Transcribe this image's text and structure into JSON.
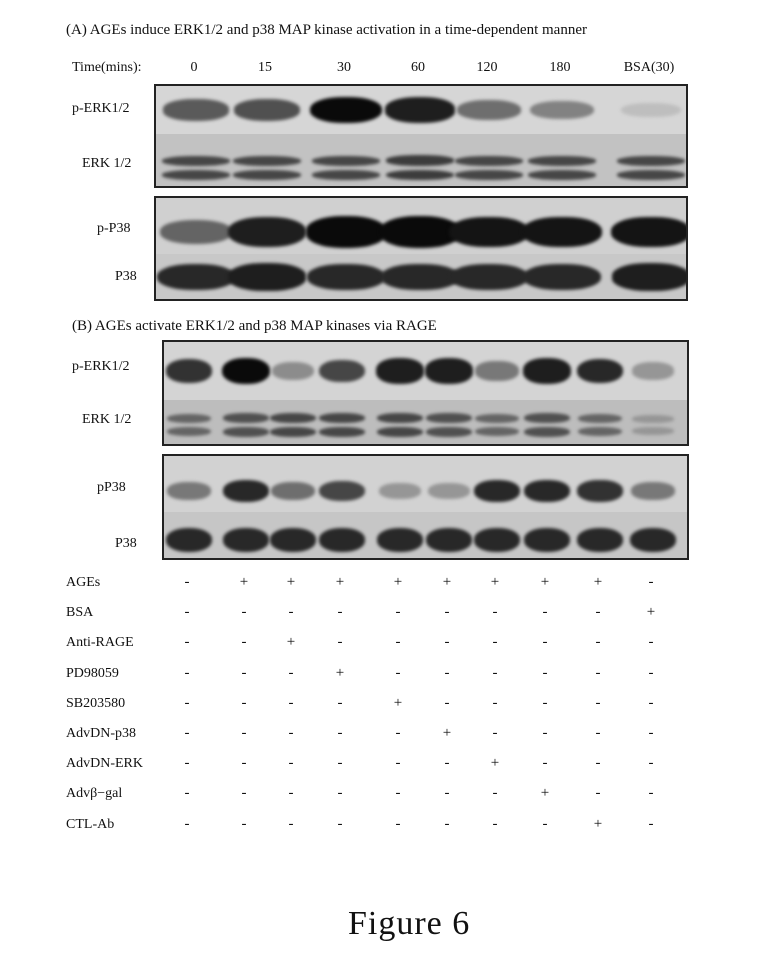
{
  "panelA": {
    "title": "(A) AGEs induce ERK1/2 and p38 MAP kinase activation in a time-dependent manner",
    "time_label": "Time(mins):",
    "timepoints": [
      "0",
      "15",
      "30",
      "60",
      "120",
      "180",
      "BSA(30)"
    ],
    "rows": [
      "p-ERK1/2",
      "ERK 1/2",
      "p-P38",
      "P38"
    ],
    "band_intensity": {
      "p-ERK1/2": [
        0.6,
        0.65,
        1.0,
        0.9,
        0.5,
        0.4,
        0.1
      ],
      "ERK 1/2": [
        0.7,
        0.7,
        0.7,
        0.75,
        0.7,
        0.7,
        0.7
      ],
      "p-P38": [
        0.55,
        0.9,
        1.0,
        1.0,
        0.95,
        0.95,
        0.95
      ],
      "P38": [
        0.85,
        0.9,
        0.85,
        0.85,
        0.85,
        0.85,
        0.9
      ]
    }
  },
  "panelB": {
    "title": "(B) AGEs activate ERK1/2 and p38 MAP kinases via RAGE",
    "rows": [
      "p-ERK1/2",
      "ERK 1/2",
      "pP38",
      "P38"
    ],
    "band_intensity": {
      "p-ERK1/2": [
        0.8,
        1.0,
        0.35,
        0.7,
        0.9,
        0.9,
        0.45,
        0.9,
        0.85,
        0.3
      ],
      "ERK 1/2": [
        0.55,
        0.65,
        0.7,
        0.7,
        0.7,
        0.65,
        0.55,
        0.65,
        0.55,
        0.3
      ],
      "pP38": [
        0.45,
        0.85,
        0.5,
        0.7,
        0.3,
        0.3,
        0.85,
        0.85,
        0.8,
        0.45
      ],
      "P38": [
        0.85,
        0.85,
        0.85,
        0.85,
        0.85,
        0.85,
        0.85,
        0.85,
        0.85,
        0.85
      ]
    },
    "treatments": [
      {
        "name": "AGEs",
        "signs": [
          "-",
          "+",
          "+",
          "+",
          "+",
          "+",
          "+",
          "+",
          "+",
          "-"
        ]
      },
      {
        "name": "BSA",
        "signs": [
          "-",
          "-",
          "-",
          "-",
          "-",
          "-",
          "-",
          "-",
          "-",
          "+"
        ]
      },
      {
        "name": "Anti-RAGE",
        "signs": [
          "-",
          "-",
          "+",
          "-",
          "-",
          "-",
          "-",
          "-",
          "-",
          "-"
        ]
      },
      {
        "name": "PD98059",
        "signs": [
          "-",
          "-",
          "-",
          "+",
          "-",
          "-",
          "-",
          "-",
          "-",
          "-"
        ]
      },
      {
        "name": "SB203580",
        "signs": [
          "-",
          "-",
          "-",
          "-",
          "+",
          "-",
          "-",
          "-",
          "-",
          "-"
        ]
      },
      {
        "name": "AdvDN-p38",
        "signs": [
          "-",
          "-",
          "-",
          "-",
          "-",
          "+",
          "-",
          "-",
          "-",
          "-"
        ]
      },
      {
        "name": "AdvDN-ERK",
        "signs": [
          "-",
          "-",
          "-",
          "-",
          "-",
          "-",
          "+",
          "-",
          "-",
          "-"
        ]
      },
      {
        "name": "Advβ−gal",
        "signs": [
          "-",
          "-",
          "-",
          "-",
          "-",
          "-",
          "-",
          "+",
          "-",
          "-"
        ]
      },
      {
        "name": "CTL-Ab",
        "signs": [
          "-",
          "-",
          "-",
          "-",
          "-",
          "-",
          "-",
          "-",
          "+",
          "-"
        ]
      }
    ]
  },
  "figure_caption": "Figure 6"
}
